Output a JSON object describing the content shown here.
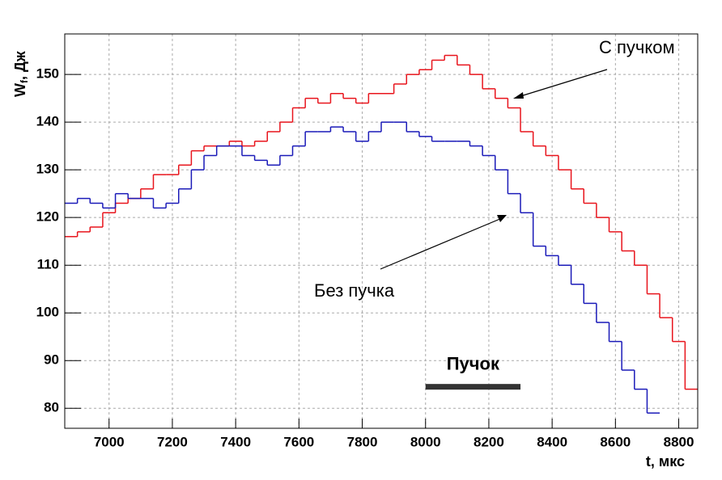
{
  "chart_data": {
    "type": "histogram",
    "xlabel": "t, мкс",
    "ylabel": "W",
    "ylabel_sub": "f",
    "ylabel_rest": ", Дж",
    "bins": [
      6860,
      6900,
      6940,
      6980,
      7020,
      7060,
      7100,
      7140,
      7180,
      7220,
      7260,
      7300,
      7340,
      7380,
      7420,
      7460,
      7500,
      7540,
      7580,
      7620,
      7660,
      7700,
      7740,
      7780,
      7820,
      7860,
      7900,
      7940,
      7980,
      8020,
      8060,
      8100,
      8140,
      8180,
      8220,
      8260,
      8300,
      8340,
      8380,
      8420,
      8460,
      8500,
      8540,
      8580,
      8620,
      8660,
      8700,
      8740,
      8780,
      8820,
      8860
    ],
    "series": [
      {
        "name": "С пучком",
        "color": "#e8141c",
        "values": [
          116,
          117,
          118,
          121,
          123,
          124,
          126,
          129,
          129,
          131,
          134,
          135,
          135,
          136,
          135,
          136,
          138,
          140,
          143,
          145,
          144,
          146,
          145,
          144,
          146,
          146,
          148,
          150,
          151,
          153,
          154,
          152,
          150,
          147,
          145,
          143,
          138,
          135,
          133,
          130,
          126,
          123,
          120,
          117,
          113,
          110,
          104,
          99,
          94,
          84
        ]
      },
      {
        "name": "Без пучка",
        "color": "#1a1ab8",
        "values": [
          123,
          124,
          123,
          122,
          125,
          124,
          124,
          122,
          123,
          126,
          130,
          133,
          135,
          135,
          133,
          132,
          131,
          133,
          135,
          138,
          138,
          139,
          138,
          136,
          138,
          140,
          140,
          138,
          137,
          136,
          136,
          136,
          135,
          133,
          130,
          125,
          121,
          114,
          112,
          110,
          106,
          102,
          98,
          94,
          88,
          84,
          79,
          null,
          null,
          null
        ]
      }
    ],
    "beam": {
      "label": "Пучок",
      "range": [
        8000,
        8300
      ],
      "y": 84.5
    },
    "xlim": [
      6860,
      8860
    ],
    "ylim": [
      75.8,
      158.5
    ],
    "xticks": [
      7000,
      7200,
      7400,
      7600,
      7800,
      8000,
      8200,
      8400,
      8600,
      8800
    ],
    "yticks": [
      80,
      90,
      100,
      110,
      120,
      130,
      140,
      150
    ],
    "grid": true
  }
}
